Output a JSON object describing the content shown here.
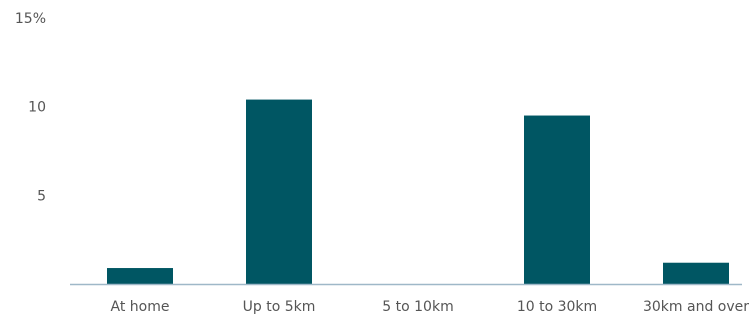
{
  "chart_data": {
    "type": "bar",
    "categories": [
      "At home",
      "Up to 5km",
      "5 to 10km",
      "10 to 30km",
      "30km and over"
    ],
    "values": [
      0.9,
      10.4,
      0,
      9.5,
      1.2
    ],
    "ylim": [
      0,
      15
    ],
    "yticks": [
      {
        "value": 15,
        "label": "15%"
      },
      {
        "value": 10,
        "label": "10"
      },
      {
        "value": 5,
        "label": "5"
      }
    ],
    "grid": false,
    "bar_color": "#005663",
    "axis_color": "#9fb8c8"
  }
}
